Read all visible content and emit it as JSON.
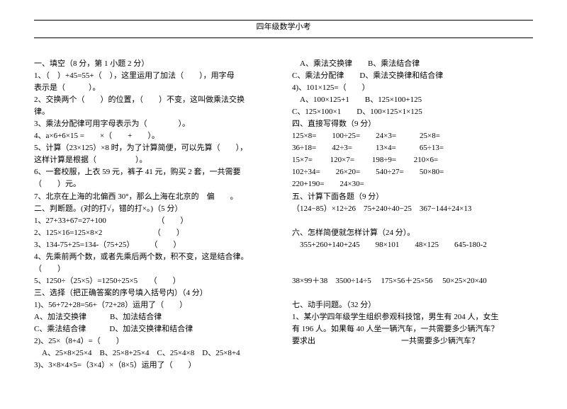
{
  "header": "四年级数学小考",
  "left": [
    "一、填空（8 分，第 1 小题 2 分）",
    "1、（　）+45=55+（　），这里运用了加法（　　），用字母",
    "表示是（　　　）。",
    "2、交换两个（　　）的位置，（　　）不变，这叫做乘法交换",
    "律。",
    "3、乘法分配律可用字母表示为（　　　　）。",
    "4、a×6+6×15 =　　×（　　+　　）。",
    "5、计算（23×125）×8 时，为了计算简便，可以先算（　　），",
    "这样计算是根据（　　　　　）。",
    "6、一套校服，上衣 59 元，裤子 41 元，购买 2 套，一共需要",
    "（　　）元。",
    "7、北京在上海的北偏西 30°，那么上海在北京的　偏　　。",
    "二、判断题。(对的打√，错的打×。)（5 分）",
    "1、27+33+67=27+100　　　　　　　（　　）",
    "2、125×16=125×8×2　　　　　　　（　　）",
    "3、134-75+25=134-（75+25）　　　（　　）",
    "4、先乘前两个数，或者先乘后两个数，积不变，这是结合律。",
    "（　　）",
    "5、1250÷（25×5）=1250÷25×5　　（　　）",
    "三、选择（把正确答案的序号填入括号内）（4 分）",
    "1)、56+72+28=56+（72+28）运用了（　　）",
    "A、加法交换律　　　B、加法结合律",
    "C、乘法结合律　　　D、加法交换律和结合律",
    "2)、25×（8+4）=（　　）",
    "　A、25×8×25×4　B、25×8+25×4　C、25×4×8　D、25×8+4",
    "3)、3×8×4×5=（3×4）×（8×5）运用了（　　）"
  ],
  "right": [
    "　A、乘法交换律　　B、乘法结合律",
    "C、乘法分配律　　D、乘法交换律和结合律",
    "4)、101×125=（　　）",
    "　A、100×125+1　　B、125×100+125",
    "C、125×100×1　　D、100×125×1×125",
    "四、直接写得数（9 分）",
    "125×8=　　100÷25=　　24×3=　　　25×8=",
    "36÷18=　　42÷3=　　　13×4=　　　65÷13=",
    "15×7=　　 120×7=　　 198÷9=　　 210×6=",
    "102÷34=　　26×20=　　540÷27=　　50×80=",
    "220+190=　　24×30=",
    "五、计算下面各题（9 分）",
    "（124−85）×12÷26　75+240÷40−25　367−144÷24×13",
    "",
    "六、怎样简便就怎样计算（24 分）。",
    "　355+260+140+245　　98×101　　48×125　　645-180-2",
    "",
    "",
    "38×99＋38　3500÷14÷5　 175×56＋25×56　 50×25×20×40",
    "",
    "七、动手问题。（32 分）",
    "1、某小学四年级学生组织参观科技馆，男生有 204 人，女生",
    "有 196 人。如果每 40 人坐一辆汽车，一共需要多少辆汽车？",
    " 要求出　　　　　　　　　　　一共需要多少辆汽车？"
  ]
}
